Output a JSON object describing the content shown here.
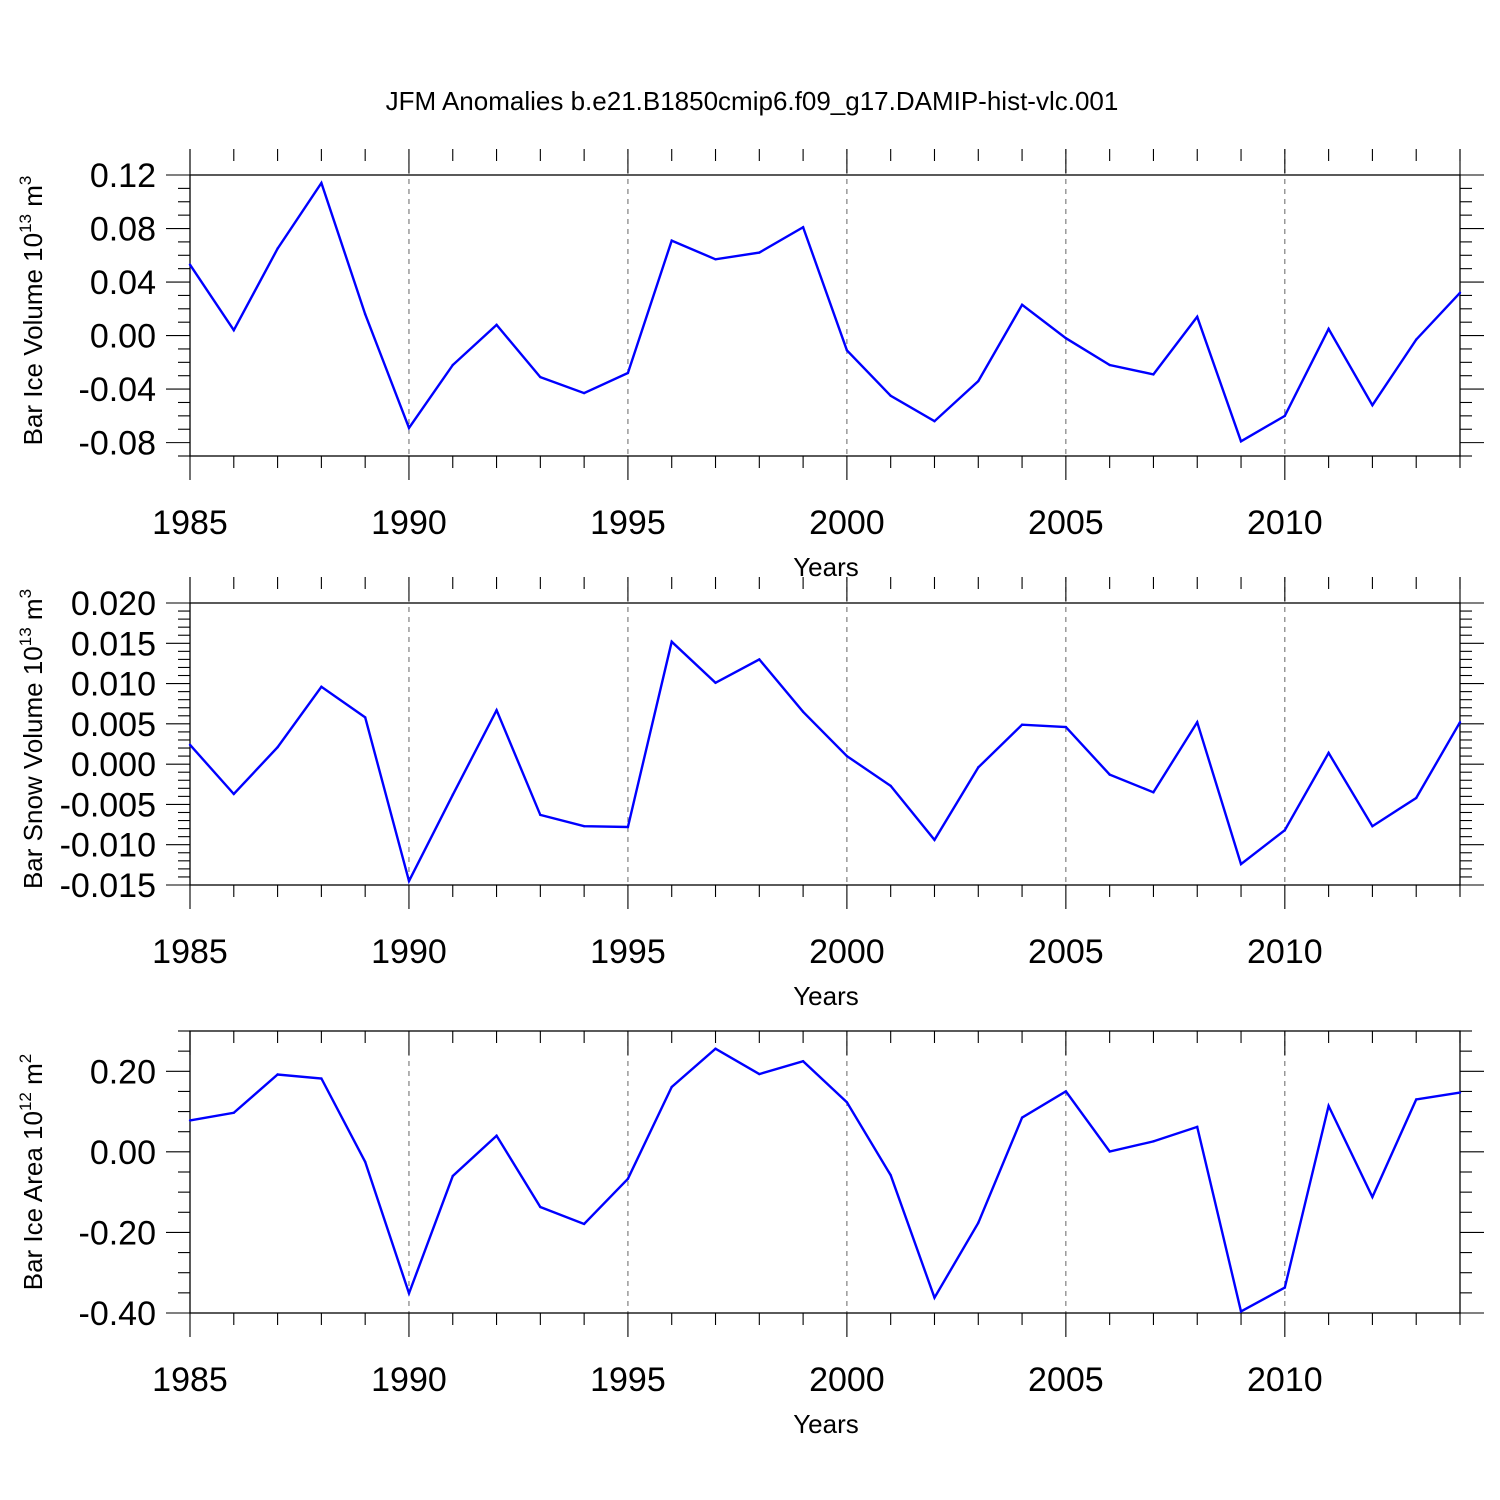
{
  "title": "JFM Anomalies b.e21.B1850cmip6.f09_g17.DAMIP-hist-vlc.001",
  "colors": {
    "series": "#0000ff",
    "grid": "#666666"
  },
  "chart_data": [
    {
      "type": "line",
      "ylabel_main": "Bar Ice Volume 10",
      "ylabel_exp": "13",
      "ylabel_unit": " m",
      "ylabel_unit_exp": "3",
      "xlabel": "Years",
      "xlim": [
        1985,
        2014
      ],
      "ylim": [
        -0.09,
        0.12
      ],
      "yticks": [
        -0.08,
        -0.04,
        0.0,
        0.04,
        0.08,
        0.12
      ],
      "ytick_labels": [
        "-0.08",
        "-0.04",
        "0.00",
        "0.04",
        "0.08",
        "0.12"
      ],
      "yminor_step": 0.01,
      "xticks": [
        1985,
        1990,
        1995,
        2000,
        2005,
        2010
      ],
      "xtick_labels": [
        "1985",
        "1990",
        "1995",
        "2000",
        "2005",
        "2010"
      ],
      "grid_x": [
        1990,
        1995,
        2000,
        2005,
        2010
      ],
      "x": [
        1985,
        1986,
        1987,
        1988,
        1989,
        1990,
        1991,
        1992,
        1993,
        1994,
        1995,
        1996,
        1997,
        1998,
        1999,
        2000,
        2001,
        2002,
        2003,
        2004,
        2005,
        2006,
        2007,
        2008,
        2009,
        2010,
        2011,
        2012,
        2013,
        2014
      ],
      "values": [
        0.053,
        0.004,
        0.065,
        0.114,
        0.016,
        -0.069,
        -0.022,
        0.008,
        -0.031,
        -0.043,
        -0.028,
        0.071,
        0.057,
        0.062,
        0.081,
        -0.011,
        -0.045,
        -0.064,
        -0.034,
        0.023,
        -0.002,
        -0.022,
        -0.029,
        0.014,
        -0.079,
        -0.06,
        0.005,
        -0.052,
        -0.003,
        0.032
      ]
    },
    {
      "type": "line",
      "ylabel_main": "Bar Snow Volume 10",
      "ylabel_exp": "13",
      "ylabel_unit": " m",
      "ylabel_unit_exp": "3",
      "xlabel": "Years",
      "xlim": [
        1985,
        2014
      ],
      "ylim": [
        -0.015,
        0.02
      ],
      "yticks": [
        -0.015,
        -0.01,
        -0.005,
        0.0,
        0.005,
        0.01,
        0.015,
        0.02
      ],
      "ytick_labels": [
        "-0.015",
        "-0.010",
        "-0.005",
        "0.000",
        "0.005",
        "0.010",
        "0.015",
        "0.020"
      ],
      "yminor_step": 0.001,
      "xticks": [
        1985,
        1990,
        1995,
        2000,
        2005,
        2010
      ],
      "xtick_labels": [
        "1985",
        "1990",
        "1995",
        "2000",
        "2005",
        "2010"
      ],
      "grid_x": [
        1990,
        1995,
        2000,
        2005,
        2010
      ],
      "x": [
        1985,
        1986,
        1987,
        1988,
        1989,
        1990,
        1991,
        1992,
        1993,
        1994,
        1995,
        1996,
        1997,
        1998,
        1999,
        2000,
        2001,
        2002,
        2003,
        2004,
        2005,
        2006,
        2007,
        2008,
        2009,
        2010,
        2011,
        2012,
        2013,
        2014
      ],
      "values": [
        0.0024,
        -0.0037,
        0.0021,
        0.0096,
        0.0058,
        -0.0145,
        -0.0038,
        0.0067,
        -0.0063,
        -0.0077,
        -0.0078,
        0.0152,
        0.0101,
        0.013,
        0.0065,
        0.001,
        -0.0027,
        -0.0094,
        -0.0004,
        0.0049,
        0.0046,
        -0.0013,
        -0.0035,
        0.0052,
        -0.0124,
        -0.0082,
        0.0014,
        -0.0077,
        -0.0042,
        0.0052
      ]
    },
    {
      "type": "line",
      "ylabel_main": "Bar Ice Area 10",
      "ylabel_exp": "12",
      "ylabel_unit": " m",
      "ylabel_unit_exp": "2",
      "xlabel": "Years",
      "xlim": [
        1985,
        2014
      ],
      "ylim": [
        -0.4,
        0.3
      ],
      "yticks": [
        -0.4,
        -0.2,
        0.0,
        0.2
      ],
      "ytick_labels": [
        "-0.40",
        "-0.20",
        "0.00",
        "0.20"
      ],
      "yminor_step": 0.05,
      "xticks": [
        1985,
        1990,
        1995,
        2000,
        2005,
        2010
      ],
      "xtick_labels": [
        "1985",
        "1990",
        "1995",
        "2000",
        "2005",
        "2010"
      ],
      "grid_x": [
        1990,
        1995,
        2000,
        2005,
        2010
      ],
      "x": [
        1985,
        1986,
        1987,
        1988,
        1989,
        1990,
        1991,
        1992,
        1993,
        1994,
        1995,
        1996,
        1997,
        1998,
        1999,
        2000,
        2001,
        2002,
        2003,
        2004,
        2005,
        2006,
        2007,
        2008,
        2009,
        2010,
        2011,
        2012,
        2013,
        2014
      ],
      "values": [
        0.078,
        0.097,
        0.192,
        0.182,
        -0.025,
        -0.351,
        -0.06,
        0.04,
        -0.137,
        -0.179,
        -0.067,
        0.161,
        0.256,
        0.193,
        0.225,
        0.123,
        -0.058,
        -0.362,
        -0.176,
        0.085,
        0.15,
        0.001,
        0.026,
        0.062,
        -0.396,
        -0.337,
        0.114,
        -0.112,
        0.13,
        0.147
      ]
    }
  ]
}
